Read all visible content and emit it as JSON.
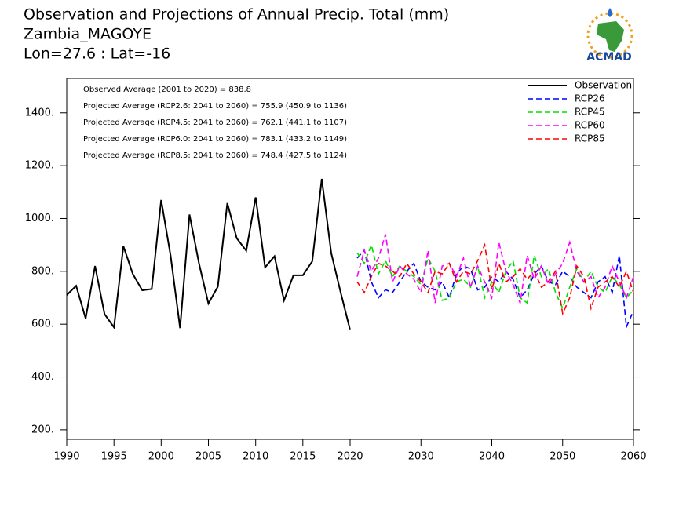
{
  "chart_data": {
    "type": "line",
    "title": "Observation and Projections of Annual Precip. Total (mm)",
    "subtitle": [
      "Zambia_MAGOYE",
      "Lon=27.6 : Lat=-16"
    ],
    "logo": "ACMAD",
    "annotations": [
      "Observed Average (2001 to 2020) = 838.8",
      "Projected Average (RCP2.6: 2041 to 2060) = 755.9 (450.9 to 1136)",
      "Projected Average (RCP4.5: 2041 to 2060) = 762.1 (441.1 to 1107)",
      "Projected Average (RCP6.0: 2041 to 2060) = 783.1 (433.2 to 1149)",
      "Projected Average (RCP8.5: 2041 to 2060) = 748.4 (427.5 to 1124)"
    ],
    "xlim": [
      1990,
      2060
    ],
    "xticks": [
      1990,
      1995,
      2000,
      2005,
      2010,
      2015,
      2020,
      2030,
      2040,
      2050,
      2060
    ],
    "ylim": [
      164,
      1530
    ],
    "yticks": [
      {
        "value": 200,
        "label": "200."
      },
      {
        "value": 400,
        "label": "400."
      },
      {
        "value": 600,
        "label": "600."
      },
      {
        "value": 800,
        "label": "800."
      },
      {
        "value": 1000,
        "label": "1000."
      },
      {
        "value": 1200,
        "label": "1200."
      },
      {
        "value": 1400,
        "label": "1400."
      }
    ],
    "legend": "upper right",
    "series": [
      {
        "name": "Observation",
        "color": "#000000",
        "style": "solid",
        "x": [
          1990,
          1991,
          1992,
          1993,
          1994,
          1995,
          1996,
          1997,
          1998,
          1999,
          2000,
          2001,
          2002,
          2003,
          2004,
          2005,
          2006,
          2007,
          2008,
          2009,
          2010,
          2011,
          2012,
          2013,
          2014,
          2015,
          2016,
          2017,
          2018,
          2019,
          2020
        ],
        "values": [
          710,
          745,
          622,
          820,
          638,
          588,
          895,
          790,
          728,
          733,
          1070,
          860,
          585,
          1015,
          830,
          678,
          742,
          1058,
          925,
          878,
          1080,
          815,
          857,
          690,
          785,
          785,
          838,
          1150,
          870,
          720,
          578
        ]
      },
      {
        "name": "RCP26",
        "color": "#0000ff",
        "style": "dashed",
        "x": [
          2021,
          2022,
          2023,
          2024,
          2025,
          2026,
          2027,
          2028,
          2029,
          2030,
          2031,
          2032,
          2033,
          2034,
          2035,
          2036,
          2037,
          2038,
          2039,
          2040,
          2041,
          2042,
          2043,
          2044,
          2045,
          2046,
          2047,
          2048,
          2049,
          2050,
          2051,
          2052,
          2053,
          2054,
          2055,
          2056,
          2057,
          2058,
          2059,
          2060
        ],
        "values": [
          850,
          880,
          760,
          700,
          730,
          720,
          760,
          800,
          830,
          760,
          740,
          730,
          760,
          700,
          790,
          820,
          810,
          730,
          740,
          780,
          760,
          800,
          770,
          700,
          730,
          790,
          820,
          760,
          750,
          800,
          780,
          740,
          720,
          700,
          760,
          780,
          720,
          860,
          590,
          650
        ]
      },
      {
        "name": "RCP45",
        "color": "#00e000",
        "style": "dashed",
        "x": [
          2021,
          2022,
          2023,
          2024,
          2025,
          2026,
          2027,
          2028,
          2029,
          2030,
          2031,
          2032,
          2033,
          2034,
          2035,
          2036,
          2037,
          2038,
          2039,
          2040,
          2041,
          2042,
          2043,
          2044,
          2045,
          2046,
          2047,
          2048,
          2049,
          2050,
          2051,
          2052,
          2053,
          2054,
          2055,
          2056,
          2057,
          2058,
          2059,
          2060
        ],
        "values": [
          870,
          830,
          900,
          790,
          840,
          780,
          820,
          800,
          780,
          750,
          850,
          800,
          690,
          700,
          760,
          770,
          740,
          820,
          700,
          760,
          720,
          800,
          840,
          700,
          680,
          860,
          780,
          810,
          720,
          660,
          740,
          810,
          760,
          800,
          740,
          720,
          780,
          750,
          700,
          730
        ]
      },
      {
        "name": "RCP60",
        "color": "#ff00ff",
        "style": "dashed",
        "x": [
          2021,
          2022,
          2023,
          2024,
          2025,
          2026,
          2027,
          2028,
          2029,
          2030,
          2031,
          2032,
          2033,
          2034,
          2035,
          2036,
          2037,
          2038,
          2039,
          2040,
          2041,
          2042,
          2043,
          2044,
          2045,
          2046,
          2047,
          2048,
          2049,
          2050,
          2051,
          2052,
          2053,
          2054,
          2055,
          2056,
          2057,
          2058,
          2059,
          2060
        ],
        "values": [
          780,
          880,
          800,
          850,
          940,
          760,
          820,
          790,
          770,
          720,
          880,
          680,
          820,
          830,
          780,
          850,
          740,
          820,
          760,
          700,
          910,
          800,
          750,
          680,
          860,
          770,
          820,
          750,
          790,
          830,
          910,
          800,
          760,
          780,
          700,
          740,
          820,
          760,
          700,
          780
        ]
      },
      {
        "name": "RCP85",
        "color": "#ff0000",
        "style": "dashed",
        "x": [
          2021,
          2022,
          2023,
          2024,
          2025,
          2026,
          2027,
          2028,
          2029,
          2030,
          2031,
          2032,
          2033,
          2034,
          2035,
          2036,
          2037,
          2038,
          2039,
          2040,
          2041,
          2042,
          2043,
          2044,
          2045,
          2046,
          2047,
          2048,
          2049,
          2050,
          2051,
          2052,
          2053,
          2054,
          2055,
          2056,
          2057,
          2058,
          2059,
          2060
        ],
        "values": [
          760,
          720,
          780,
          830,
          820,
          800,
          780,
          830,
          790,
          760,
          720,
          800,
          790,
          830,
          760,
          800,
          790,
          840,
          900,
          730,
          830,
          760,
          780,
          810,
          770,
          800,
          740,
          760,
          800,
          640,
          700,
          820,
          780,
          660,
          740,
          760,
          780,
          740,
          800,
          720
        ]
      }
    ]
  }
}
